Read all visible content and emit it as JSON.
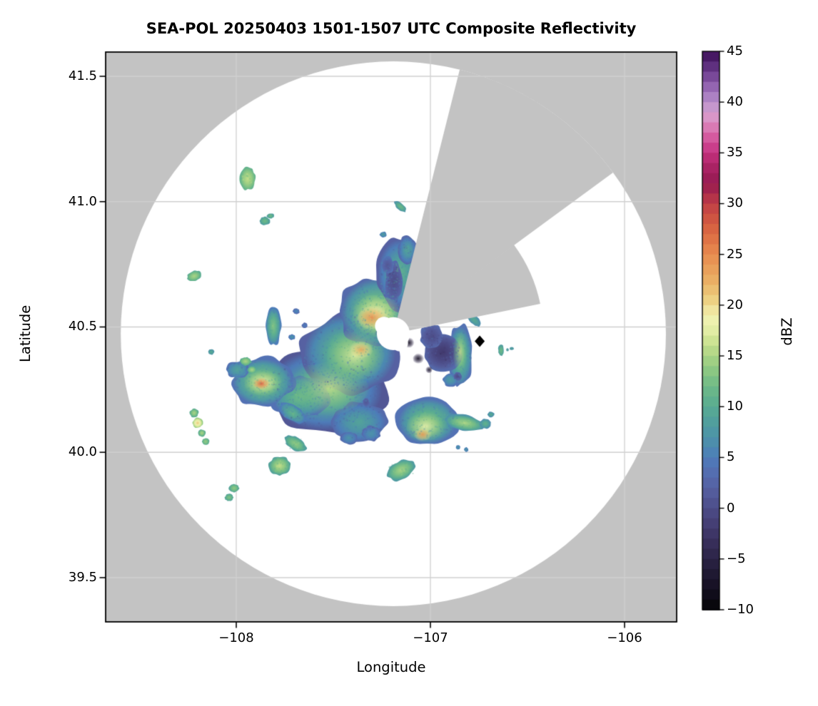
{
  "chart_data": {
    "type": "heatmap",
    "title": "SEA-POL 20250403 1501-1507 UTC Composite Reflectivity",
    "xlabel": "Longitude",
    "ylabel": "Latitude",
    "xlim": [
      -108.67,
      -105.73
    ],
    "ylim": [
      39.32,
      41.6
    ],
    "x_ticks": [
      -108,
      -107,
      -106
    ],
    "x_tick_labels": [
      "−108",
      "−107",
      "−106"
    ],
    "y_ticks": [
      41.5,
      41.0,
      40.5,
      40.0,
      39.5
    ],
    "y_tick_labels": [
      "41.5",
      "41.0",
      "40.5",
      "40.0",
      "39.5"
    ],
    "grid": true,
    "style": {
      "no_coverage_gray": "#c3c3c3",
      "coverage_white": "#ffffff",
      "grid_color": "#d0d0d0",
      "axis_color": "#000000",
      "figure_bg": "#ffffff"
    },
    "colorbar": {
      "label": "dBZ",
      "min": -10,
      "max": 45,
      "step": 1,
      "tick_values": [
        45,
        40,
        35,
        30,
        25,
        20,
        15,
        10,
        5,
        0,
        -5,
        -10
      ],
      "tick_labels": [
        "45",
        "40",
        "35",
        "30",
        "25",
        "20",
        "15",
        "10",
        "5",
        "0",
        "−5",
        "−10"
      ],
      "palette": [
        [
          -10,
          "#050507"
        ],
        [
          -8,
          "#140f20"
        ],
        [
          -6,
          "#231c38"
        ],
        [
          -4,
          "#332a52"
        ],
        [
          -2,
          "#423a6e"
        ],
        [
          0,
          "#4d4d88"
        ],
        [
          2,
          "#5661a2"
        ],
        [
          4,
          "#5372b4"
        ],
        [
          5,
          "#4d7cba"
        ],
        [
          6,
          "#4c8ab0"
        ],
        [
          8,
          "#4f9ba1"
        ],
        [
          10,
          "#58ab92"
        ],
        [
          12,
          "#6fba87"
        ],
        [
          14,
          "#94cb82"
        ],
        [
          16,
          "#c2de8b"
        ],
        [
          17,
          "#d9e99d"
        ],
        [
          18,
          "#ebf1ac"
        ],
        [
          19,
          "#f1f1b2"
        ],
        [
          20,
          "#eed98b"
        ],
        [
          21,
          "#ecc87a"
        ],
        [
          22,
          "#eab569"
        ],
        [
          24,
          "#e89956"
        ],
        [
          25,
          "#e78b4f"
        ],
        [
          26,
          "#e27a48"
        ],
        [
          28,
          "#d45d40"
        ],
        [
          30,
          "#c03e46"
        ],
        [
          31,
          "#aa294b"
        ],
        [
          32,
          "#961b50"
        ],
        [
          33,
          "#a01f5d"
        ],
        [
          34,
          "#b2266a"
        ],
        [
          35,
          "#c43180"
        ],
        [
          36,
          "#d04b95"
        ],
        [
          37,
          "#d768a9"
        ],
        [
          38,
          "#db8bbf"
        ],
        [
          39,
          "#d6a1d1"
        ],
        [
          40,
          "#b58dc9"
        ],
        [
          41,
          "#a274bc"
        ],
        [
          42,
          "#8656a5"
        ],
        [
          43,
          "#6b3c8c"
        ],
        [
          44,
          "#522372"
        ],
        [
          45,
          "#3b0f56"
        ]
      ]
    },
    "radar": {
      "center_lon": -107.191,
      "center_lat": 40.473,
      "range_deg_lon": 1.404,
      "hole_radius_deg_lon": 0.085,
      "blocked_sectors": [
        {
          "az_start_deg": 14.1,
          "az_end_deg": 53.7,
          "range_frac": 1.0
        },
        {
          "az_start_deg": 53.7,
          "az_end_deg": 78.5,
          "range_frac": 0.55
        }
      ]
    },
    "site_marker": {
      "shape": "diamond",
      "lon": -106.746,
      "lat": 40.443,
      "color": "#000000"
    },
    "echo_format": [
      "lon",
      "lat",
      "rx_deg",
      "ry_deg",
      "rot_deg",
      "core_dbz",
      "edge_dbz",
      "soft"
    ],
    "echoes": [
      [
        -107.544,
        40.249,
        0.313,
        0.171,
        0,
        12,
        1,
        0
      ],
      [
        -107.415,
        40.397,
        0.25,
        0.163,
        0,
        13,
        2,
        0
      ],
      [
        -107.279,
        40.557,
        0.191,
        0.143,
        0,
        15,
        3,
        0
      ],
      [
        -107.158,
        40.714,
        0.118,
        0.143,
        0,
        11,
        2,
        0
      ],
      [
        -107.368,
        40.12,
        0.147,
        0.08,
        0,
        9,
        3,
        0
      ],
      [
        -107.673,
        40.22,
        0.147,
        0.086,
        0,
        12,
        4,
        0
      ],
      [
        -107.864,
        40.28,
        0.162,
        0.097,
        0,
        14,
        4,
        0
      ],
      [
        -107.993,
        40.329,
        0.059,
        0.034,
        0,
        9,
        4,
        0
      ],
      [
        -107.71,
        40.157,
        0.074,
        0.031,
        35,
        11,
        5,
        0
      ],
      [
        -107.809,
        40.503,
        0.04,
        0.077,
        0,
        13,
        5,
        0
      ],
      [
        -107.118,
        40.806,
        0.048,
        0.057,
        0,
        9,
        3,
        0
      ],
      [
        -107.305,
        40.074,
        0.05,
        0.03,
        0,
        7,
        3,
        0
      ],
      [
        -107.419,
        40.057,
        0.044,
        0.026,
        0,
        7,
        3,
        0
      ],
      [
        -106.846,
        40.386,
        0.063,
        0.123,
        0,
        12,
        4,
        0
      ],
      [
        -106.897,
        40.289,
        0.04,
        0.026,
        0,
        8,
        4,
        0
      ],
      [
        -107.015,
        40.123,
        0.158,
        0.094,
        0,
        13,
        4,
        0
      ],
      [
        -106.824,
        40.117,
        0.103,
        0.031,
        10,
        15,
        7,
        0
      ],
      [
        -106.717,
        40.114,
        0.029,
        0.02,
        0,
        11,
        6,
        0
      ],
      [
        -106.688,
        40.151,
        0.018,
        0.011,
        0,
        10,
        6,
        0
      ],
      [
        -106.857,
        40.02,
        0.011,
        0.009,
        0,
        7,
        5,
        0
      ],
      [
        -106.816,
        40.011,
        0.011,
        0.009,
        0,
        7,
        5,
        0
      ],
      [
        -107.151,
        39.929,
        0.077,
        0.037,
        -25,
        15,
        8,
        0
      ],
      [
        -107.776,
        39.946,
        0.055,
        0.037,
        0,
        16,
        9,
        0
      ],
      [
        -107.695,
        40.034,
        0.063,
        0.026,
        30,
        14,
        8,
        0
      ],
      [
        -107.941,
        41.091,
        0.04,
        0.046,
        0,
        16,
        11,
        0
      ],
      [
        -107.853,
        40.923,
        0.026,
        0.017,
        0,
        12,
        8,
        0
      ],
      [
        -107.824,
        40.943,
        0.018,
        0.011,
        0,
        12,
        8,
        0
      ],
      [
        -108.217,
        40.703,
        0.037,
        0.02,
        -20,
        15,
        10,
        0
      ],
      [
        -108.129,
        40.4,
        0.015,
        0.011,
        0,
        10,
        7,
        0
      ],
      [
        -108.217,
        40.157,
        0.022,
        0.017,
        0,
        15,
        10,
        0
      ],
      [
        -108.199,
        40.117,
        0.026,
        0.02,
        0,
        21,
        14,
        0
      ],
      [
        -108.177,
        40.077,
        0.018,
        0.014,
        0,
        15,
        10,
        0
      ],
      [
        -108.158,
        40.043,
        0.018,
        0.014,
        0,
        14,
        10,
        0
      ],
      [
        -108.011,
        39.857,
        0.026,
        0.017,
        0,
        14,
        9,
        0
      ],
      [
        -108.037,
        39.82,
        0.022,
        0.014,
        0,
        13,
        9,
        0
      ],
      [
        -107.952,
        40.363,
        0.029,
        0.017,
        0,
        15,
        10,
        0
      ],
      [
        -107.919,
        40.329,
        0.022,
        0.014,
        0,
        15,
        10,
        0
      ],
      [
        -107.691,
        40.563,
        0.018,
        0.011,
        0,
        6,
        3,
        0
      ],
      [
        -107.647,
        40.506,
        0.015,
        0.011,
        0,
        5,
        3,
        0
      ],
      [
        -107.713,
        40.46,
        0.018,
        0.011,
        0,
        7,
        4,
        0
      ],
      [
        -107.154,
        40.98,
        0.037,
        0.014,
        40,
        12,
        7,
        0
      ],
      [
        -107.243,
        40.869,
        0.018,
        0.011,
        0,
        8,
        5,
        0
      ],
      [
        -106.776,
        40.529,
        0.048,
        0.017,
        45,
        10,
        6,
        0
      ],
      [
        -106.636,
        40.406,
        0.015,
        0.023,
        0,
        12,
        8,
        0
      ],
      [
        -106.603,
        40.409,
        0.007,
        0.006,
        0,
        9,
        7,
        0
      ],
      [
        -106.581,
        40.414,
        0.011,
        0.006,
        0,
        9,
        7,
        0
      ],
      [
        -106.938,
        40.4,
        0.103,
        0.077,
        0,
        -2,
        3,
        0
      ],
      [
        -106.993,
        40.463,
        0.059,
        0.051,
        0,
        0,
        3,
        0
      ],
      [
        -107.188,
        40.68,
        0.048,
        0.08,
        0,
        0,
        3,
        0
      ],
      [
        -107.221,
        40.746,
        0.033,
        0.034,
        0,
        1,
        4,
        0
      ],
      [
        -107.331,
        40.2,
        0.018,
        0.017,
        0,
        1,
        3,
        0
      ],
      [
        -106.86,
        40.303,
        0.022,
        0.017,
        0,
        0,
        3,
        0
      ],
      [
        -107.518,
        40.257,
        0.202,
        0.109,
        0,
        16,
        10,
        1
      ],
      [
        -107.39,
        40.386,
        0.154,
        0.103,
        0,
        17,
        11,
        1
      ],
      [
        -107.279,
        40.549,
        0.125,
        0.086,
        0,
        19,
        13,
        1
      ],
      [
        -107.301,
        40.537,
        0.081,
        0.046,
        0,
        25,
        19,
        1
      ],
      [
        -107.357,
        40.409,
        0.059,
        0.034,
        0,
        23,
        18,
        1
      ],
      [
        -107.864,
        40.277,
        0.096,
        0.051,
        0,
        19,
        13,
        1
      ],
      [
        -107.871,
        40.274,
        0.044,
        0.023,
        0,
        28,
        22,
        1
      ],
      [
        -106.846,
        40.4,
        0.037,
        0.086,
        0,
        16,
        10,
        1
      ],
      [
        -107.026,
        40.103,
        0.103,
        0.057,
        0,
        18,
        12,
        1
      ],
      [
        -107.04,
        40.071,
        0.044,
        0.026,
        0,
        24,
        19,
        1
      ],
      [
        -107.11,
        40.437,
        0.026,
        0.02,
        0,
        -8,
        -4,
        1
      ],
      [
        -107.063,
        40.374,
        0.029,
        0.02,
        0,
        -8,
        -4,
        1
      ],
      [
        -107.007,
        40.329,
        0.018,
        0.014,
        0,
        -7,
        -4,
        1
      ]
    ]
  }
}
